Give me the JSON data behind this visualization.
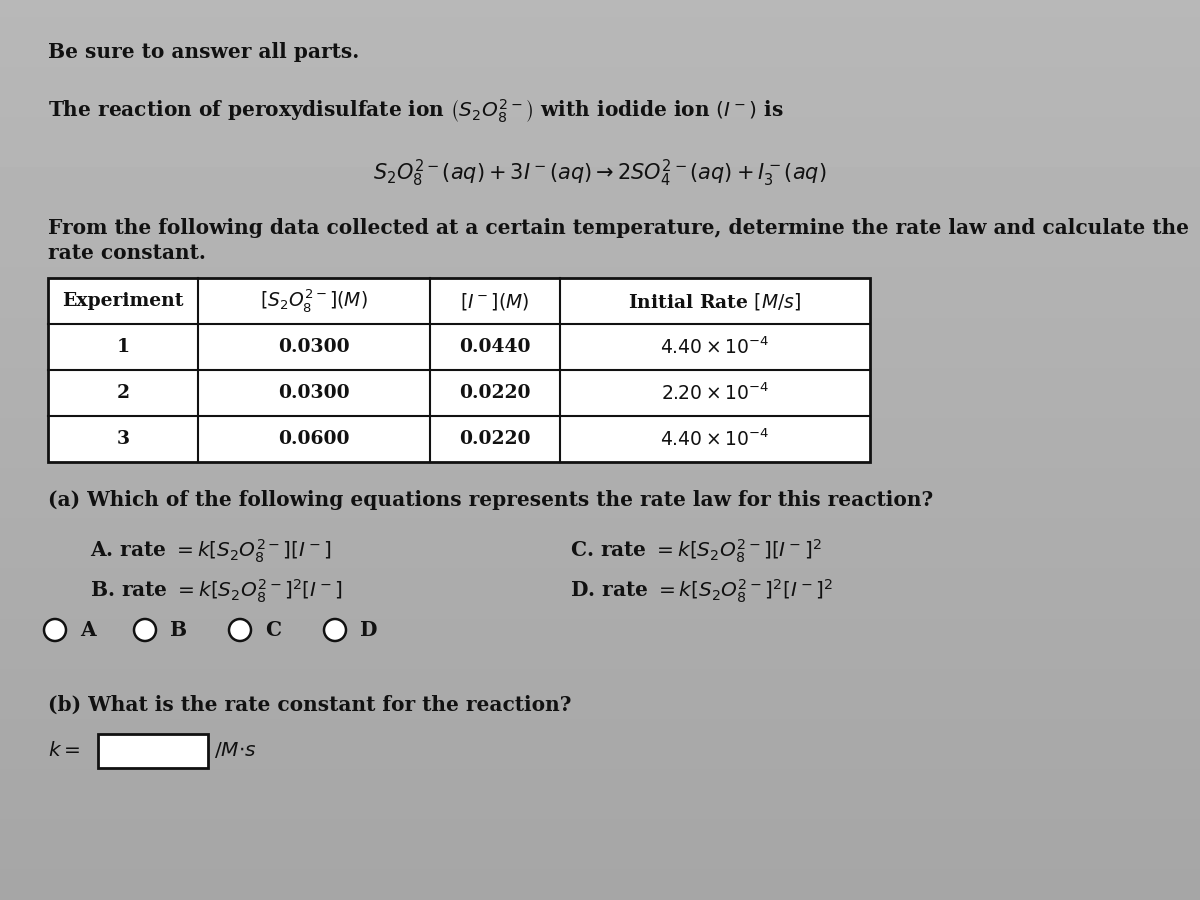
{
  "bg_color": "#b8b8b8",
  "text_color": "#111111",
  "title_line": "Be sure to answer all parts.",
  "eq_line": "$S_2O_8^{2-}(aq) + 3I^-(aq) \\rightarrow 2SO_4^{2-}(aq) + I_3^-(aq)$",
  "from_line1": "From the following data collected at a certain temperature, determine the rate law and calculate the",
  "from_line2": "rate constant.",
  "part_a_label": "(a) Which of the following equations represents the rate law for this reaction?",
  "part_b_label": "(b) What is the rate constant for the reaction?",
  "table_col1_header": "Experiment",
  "table_col2_header": "$[S_2O_8^{2-}](M)$",
  "table_col3_header": "$[I^-](M)$",
  "table_col4_header": "Initial Rate $[M/s]$",
  "row1": [
    "1",
    "0.0300",
    "0.0440",
    "$4.40 \\times 10^{-4}$"
  ],
  "row2": [
    "2",
    "0.0300",
    "0.0220",
    "$2.20 \\times 10^{-4}$"
  ],
  "row3": [
    "3",
    "0.0600",
    "0.0220",
    "$4.40 \\times 10^{-4}$"
  ],
  "optA": "A. rate $= k[S_2O_8^{2-}][I^-]$",
  "optB": "B. rate $= k[S_2O_8^{2-}]^2[I^-]$",
  "optC": "C. rate $= k[S_2O_8^{2-}][I^-]^2$",
  "optD": "D. rate $= k[S_2O_8^{2-}]^2[I^-]^2$",
  "radio_labels": [
    "A",
    "B",
    "C",
    "D"
  ],
  "k_eq": "$k =$",
  "k_units": "$M^{-1}\\cdot s^{-1}$"
}
